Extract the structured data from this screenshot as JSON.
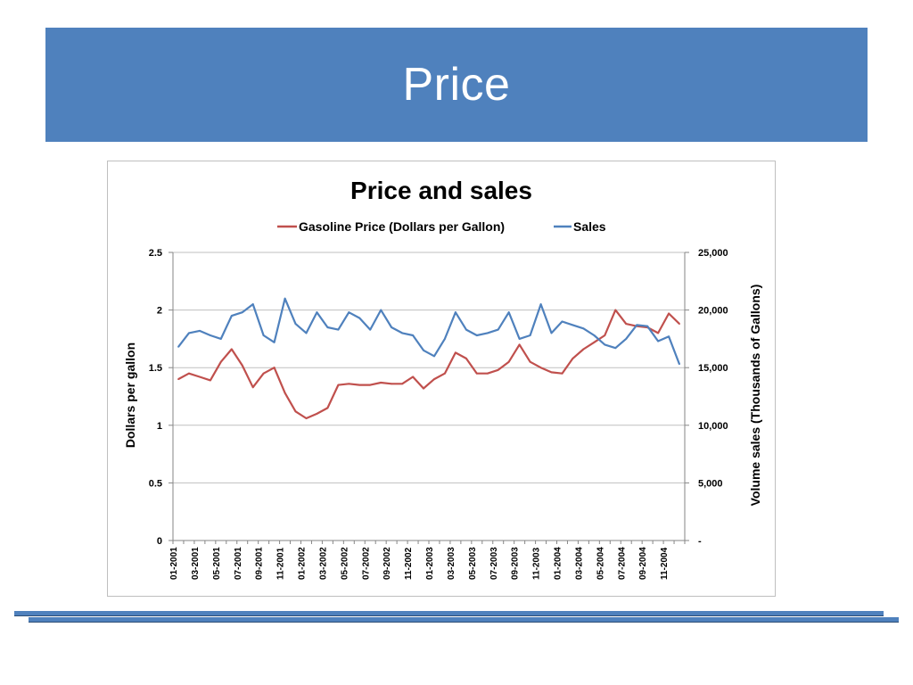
{
  "slide": {
    "title": "Price"
  },
  "chart_data": {
    "type": "line",
    "title": "Price and sales",
    "y_left_label": "Dollars per gallon",
    "y_right_label": "Volume sales (Thousands of Gallons)",
    "y_left_range": [
      0,
      2.5
    ],
    "y_right_range": [
      0,
      25000
    ],
    "y_left_ticks": [
      "0",
      "0.5",
      "1",
      "1.5",
      "2",
      "2.5"
    ],
    "y_right_ticks": [
      "-",
      "5,000",
      "10,000",
      "15,000",
      "20,000",
      "25,000"
    ],
    "x_tick_labels": [
      "01-2001",
      "03-2001",
      "05-2001",
      "07-2001",
      "09-2001",
      "11-2001",
      "01-2002",
      "03-2002",
      "05-2002",
      "07-2002",
      "09-2002",
      "11-2002",
      "01-2003",
      "03-2003",
      "05-2003",
      "07-2003",
      "09-2003",
      "11-2003",
      "01-2004",
      "03-2004",
      "05-2004",
      "07-2004",
      "09-2004",
      "11-2004"
    ],
    "x_range": [
      "01-2001",
      "12-2004"
    ],
    "grid": "horizontal",
    "legend_position": "top",
    "series": [
      {
        "name": "Gasoline Price (Dollars per Gallon)",
        "axis": "left",
        "color": "#c0504d",
        "x": [
          "01-2001",
          "02-2001",
          "03-2001",
          "04-2001",
          "05-2001",
          "06-2001",
          "07-2001",
          "08-2001",
          "09-2001",
          "10-2001",
          "11-2001",
          "12-2001",
          "01-2002",
          "02-2002",
          "03-2002",
          "04-2002",
          "05-2002",
          "06-2002",
          "07-2002",
          "08-2002",
          "09-2002",
          "10-2002",
          "11-2002",
          "12-2002",
          "01-2003",
          "02-2003",
          "03-2003",
          "04-2003",
          "05-2003",
          "06-2003",
          "07-2003",
          "08-2003",
          "09-2003",
          "10-2003",
          "11-2003",
          "12-2003",
          "01-2004",
          "02-2004",
          "03-2004",
          "04-2004",
          "05-2004",
          "06-2004",
          "07-2004",
          "08-2004",
          "09-2004",
          "10-2004",
          "11-2004",
          "12-2004"
        ],
        "values": [
          1.4,
          1.45,
          1.42,
          1.39,
          1.55,
          1.66,
          1.52,
          1.33,
          1.45,
          1.5,
          1.28,
          1.12,
          1.06,
          1.1,
          1.15,
          1.35,
          1.36,
          1.35,
          1.35,
          1.37,
          1.36,
          1.36,
          1.42,
          1.32,
          1.4,
          1.45,
          1.63,
          1.58,
          1.45,
          1.45,
          1.48,
          1.55,
          1.7,
          1.55,
          1.5,
          1.46,
          1.45,
          1.58,
          1.66,
          1.72,
          1.78,
          2.0,
          1.88,
          1.86,
          1.85,
          1.8,
          1.97,
          1.88
        ]
      },
      {
        "name": "Sales",
        "axis": "right",
        "color": "#4f81bd",
        "x": [
          "01-2001",
          "02-2001",
          "03-2001",
          "04-2001",
          "05-2001",
          "06-2001",
          "07-2001",
          "08-2001",
          "09-2001",
          "10-2001",
          "11-2001",
          "12-2001",
          "01-2002",
          "02-2002",
          "03-2002",
          "04-2002",
          "05-2002",
          "06-2002",
          "07-2002",
          "08-2002",
          "09-2002",
          "10-2002",
          "11-2002",
          "12-2002",
          "01-2003",
          "02-2003",
          "03-2003",
          "04-2003",
          "05-2003",
          "06-2003",
          "07-2003",
          "08-2003",
          "09-2003",
          "10-2003",
          "11-2003",
          "12-2003",
          "01-2004",
          "02-2004",
          "03-2004",
          "04-2004",
          "05-2004",
          "06-2004",
          "07-2004",
          "08-2004",
          "09-2004",
          "10-2004",
          "11-2004",
          "12-2004"
        ],
        "values": [
          16800,
          18000,
          18200,
          17800,
          17500,
          19500,
          19800,
          20500,
          17800,
          17200,
          21000,
          18800,
          18000,
          19800,
          18500,
          18300,
          19800,
          19300,
          18300,
          20000,
          18500,
          18000,
          17800,
          16500,
          16000,
          17500,
          19800,
          18300,
          17800,
          18000,
          18300,
          19800,
          17500,
          17800,
          20500,
          18000,
          19000,
          18700,
          18400,
          17800,
          17000,
          16700,
          17500,
          18700,
          18600,
          17300,
          17700,
          15300
        ]
      }
    ]
  }
}
